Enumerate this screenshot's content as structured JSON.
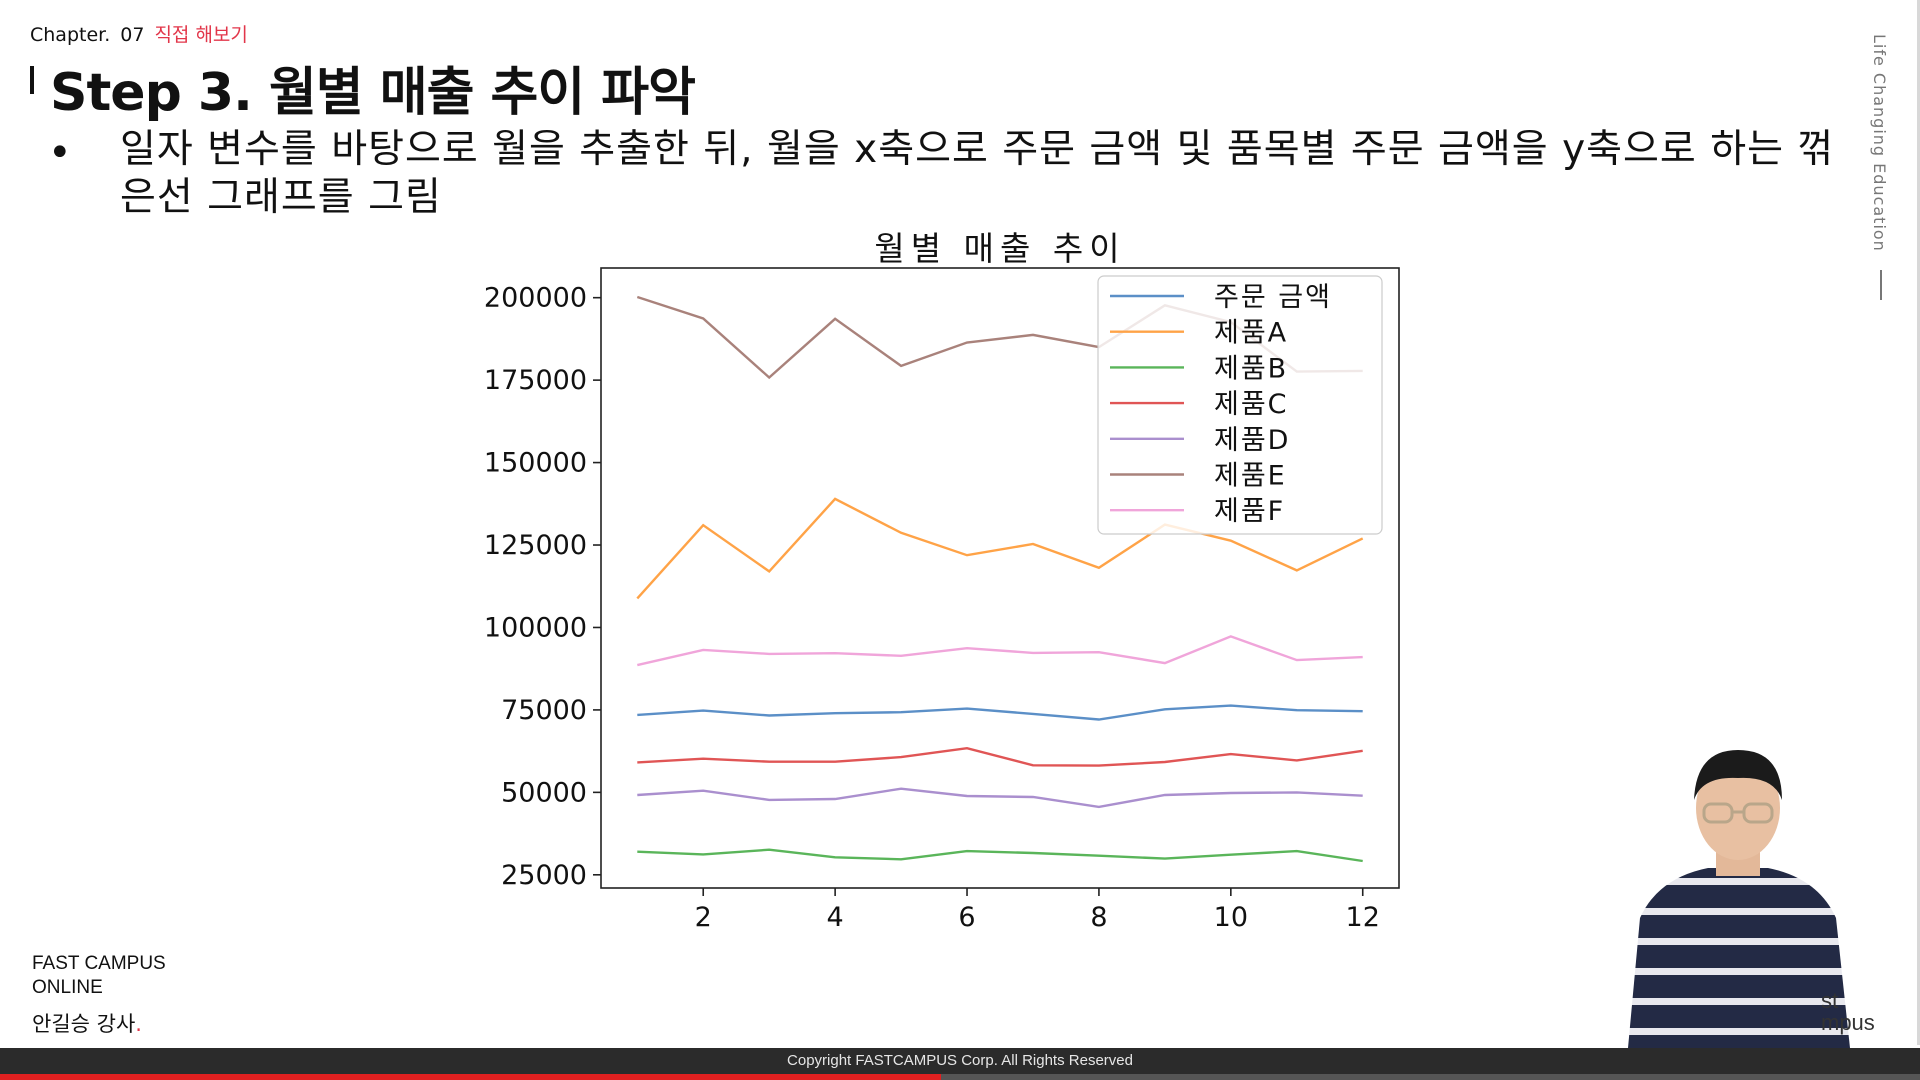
{
  "header": {
    "chapter_label": "Chapter.",
    "chapter_number": "07",
    "chapter_title": "직접 해보기",
    "slide_title": "Step 3. 월별 매출 추이 파악",
    "bullet_text": "일자 변수를 바탕으로 월을 추출한 뒤, 월을 x축으로 주문 금액 및 품목별 주문 금액을 y축으로 하는 꺾은선 그래프를 그림"
  },
  "side": {
    "text": "Life Changing Education"
  },
  "brand": {
    "line1": "FAST CAMPUS",
    "line2": "ONLINE"
  },
  "instructor": {
    "name": "안길승 강사",
    "dot": "."
  },
  "footer": {
    "copyright": "Copyright FASTCAMPUS Corp. All Rights Reserved"
  },
  "video": {
    "progress": 0.49,
    "camera_logo_line1": "st",
    "camera_logo_line2": "mpus"
  },
  "colors": {
    "accent": "#e2364a",
    "series": [
      "#5b8fc7",
      "#ffa347",
      "#5ab55a",
      "#e05555",
      "#aa8fce",
      "#a9827b",
      "#f0a5da"
    ]
  },
  "chart_data": {
    "type": "line",
    "title": "월별 매출 추이",
    "xlabel": "",
    "ylabel": "",
    "x": [
      1,
      2,
      3,
      4,
      5,
      6,
      7,
      8,
      9,
      10,
      11,
      12
    ],
    "xticks": [
      2,
      4,
      6,
      8,
      10,
      12
    ],
    "yticks": [
      25000,
      50000,
      75000,
      100000,
      125000,
      150000,
      175000,
      200000
    ],
    "xlim": [
      0.45,
      12.55
    ],
    "ylim": [
      21000,
      209000
    ],
    "legend_position": "top-right",
    "grid": false,
    "series": [
      {
        "name": "주문 금액",
        "values": [
          73500,
          74800,
          73300,
          74000,
          74300,
          75400,
          73800,
          72100,
          75200,
          76300,
          74900,
          74600
        ]
      },
      {
        "name": "제품A",
        "values": [
          108800,
          131000,
          117000,
          139000,
          128700,
          121900,
          125300,
          118100,
          131200,
          126300,
          117300,
          127000
        ]
      },
      {
        "name": "제품B",
        "values": [
          32000,
          31200,
          32600,
          30300,
          29700,
          32200,
          31600,
          30800,
          29900,
          31100,
          32200,
          29200
        ]
      },
      {
        "name": "제품C",
        "values": [
          59100,
          60200,
          59300,
          59300,
          60700,
          63400,
          58200,
          58100,
          59200,
          61600,
          59700,
          62600
        ]
      },
      {
        "name": "제품D",
        "values": [
          49200,
          50500,
          47700,
          48000,
          51100,
          48900,
          48600,
          45600,
          49200,
          49800,
          50000,
          49000
        ]
      },
      {
        "name": "제품E",
        "values": [
          200200,
          193700,
          175800,
          193600,
          179300,
          186400,
          188700,
          185000,
          197700,
          192600,
          177600,
          177800
        ]
      },
      {
        "name": "제품F",
        "values": [
          88600,
          93200,
          92000,
          92200,
          91400,
          93700,
          92300,
          92500,
          89200,
          97300,
          90100,
          91000
        ]
      }
    ]
  }
}
